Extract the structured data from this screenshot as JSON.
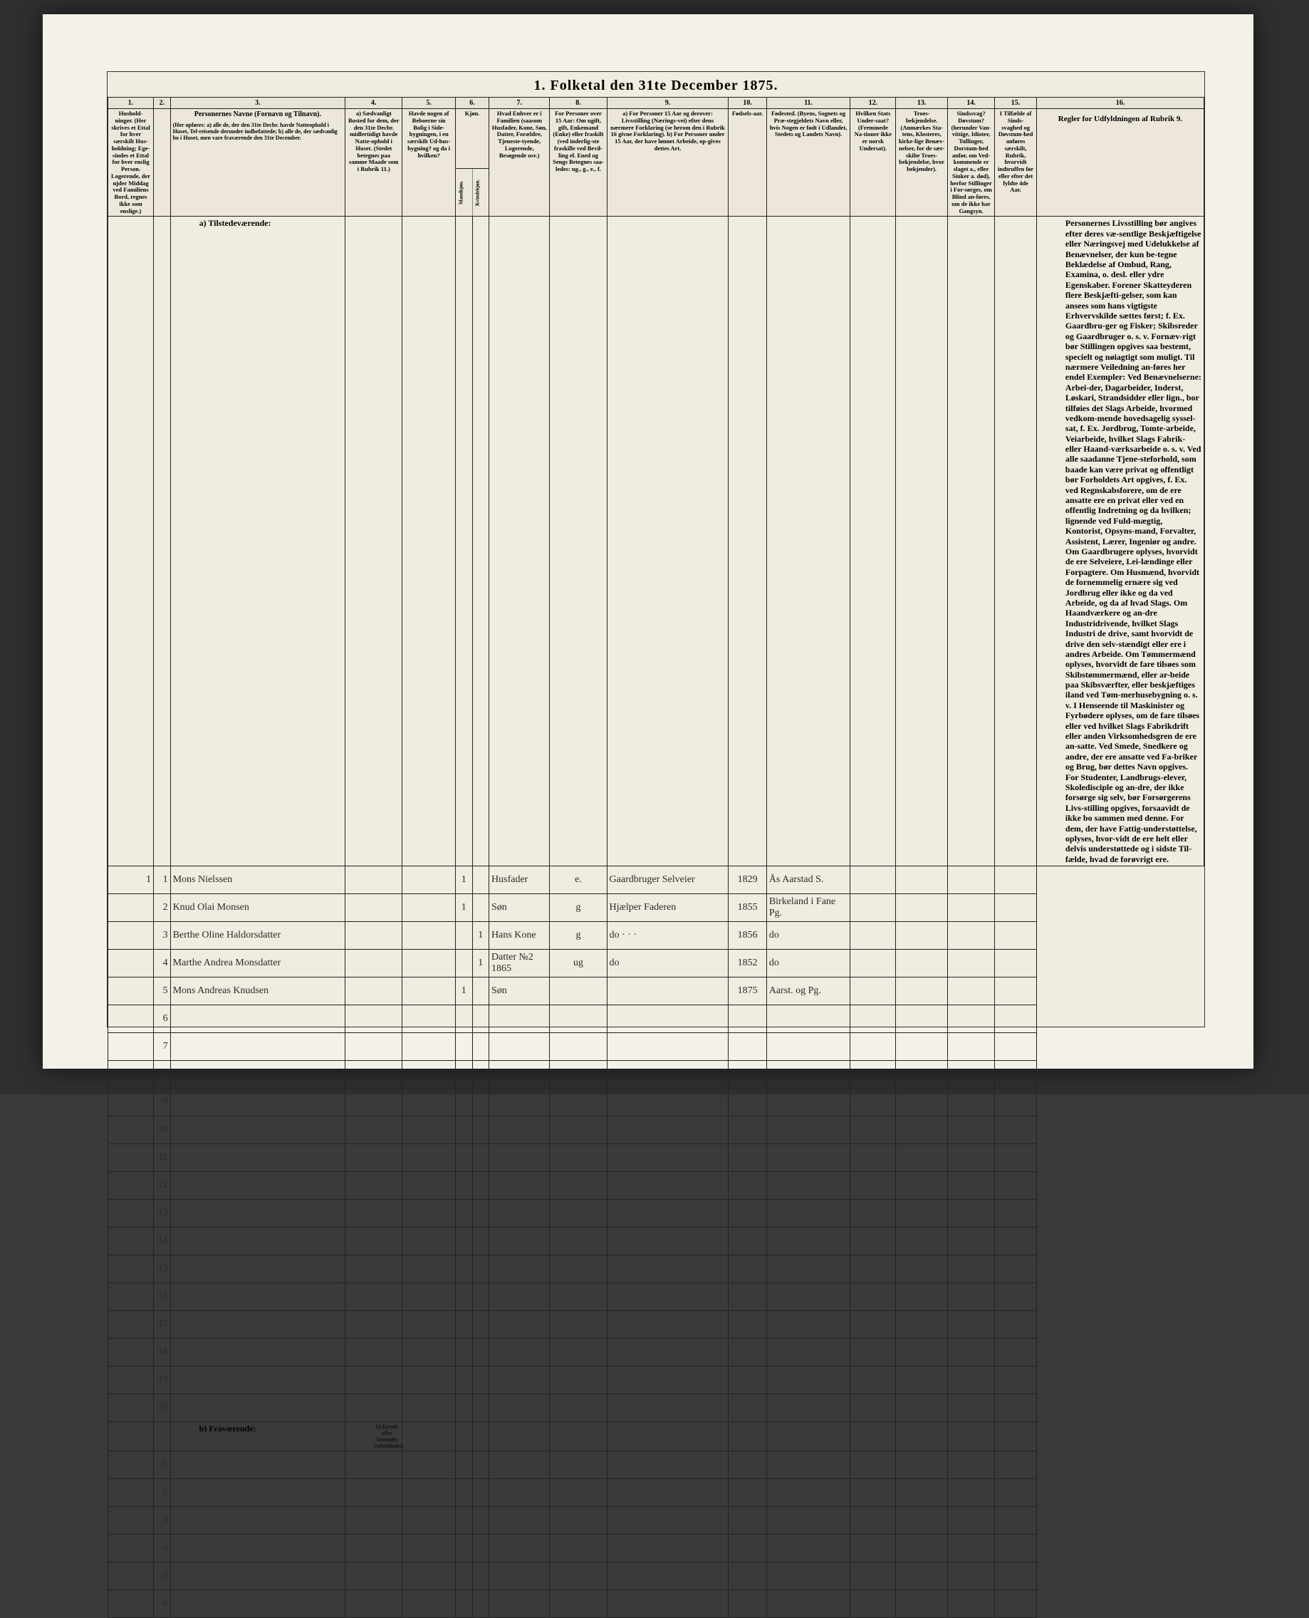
{
  "title": "1. Folketal den 31te December 1875.",
  "columns": {
    "c1": {
      "num": "1.",
      "header": "Hushold-\nninger.\n(Her skrives et Ettal for hver særskilt Hus-holdning; Ege-sindes et Ettal for hver enslig Person.\nLogerende, der njder Middag ved Familiens Bord, regnes ikke som enslige.)"
    },
    "c2": {
      "num": "2.",
      "header": ""
    },
    "c3": {
      "num": "3.",
      "header_top": "Personernes Navne (Fornavn og Tilnavn).",
      "header_sub": "(Her opføres:\na) alle de, der den 31te Decbr. havde Natteophold i Huset, Tel-reisende derunder indbefattede;\nb) alle de, der sædvanlig bo i Huset, men vare fraværende den 31te December."
    },
    "c4": {
      "num": "4.",
      "header": "a) Sædvanligt Bosted for dem, der den 31te Decbr. midlertidigt havde Natte-ophold i Huset. (Stedet betegnes paa samme Maade som i Rubrik 11.)"
    },
    "c5": {
      "num": "5.",
      "header": "Havde nogen af Beboerne sin Bolig i Side-bygningen, i en særskilt Ud-hus-bygning? og da i hvilken?"
    },
    "c6": {
      "num": "6.",
      "header_top": "Kjøn.",
      "header_sub1": "Mandkjøn.",
      "header_sub2": "Kvindekjøn."
    },
    "c7": {
      "num": "7.",
      "header": "Hvad Enhver er i Familien\n(saasom Husfader, Kone, Søn, Datter, Forældre, Tjeneste-tyende, Logerende, Besøgende osv.)"
    },
    "c8": {
      "num": "8.",
      "header": "For Personer over 15 Aar: Om ugift, gift, Enkemand (Enke) eller fraskilt (ved inderlig-ste fraskille ved Bevil-ling el. Ened og Sengs Betegnes saa-ledes:\nug., g., e., f."
    },
    "c9": {
      "num": "9.",
      "header": "a) For Personer 15 Aar og derover: Livsstilling (Nærings-vei) efter dens nærmere Forklaring\n(se herom den i Rubrik 16 givne Forklaring).\nb) For Personer under 15 Aar, der have lønnet Arbeide, op-gives dettes Art."
    },
    "c10": {
      "num": "10.",
      "header": "Fødsels-aar."
    },
    "c11": {
      "num": "11.",
      "header": "Fødested.\n(Byens, Sognets og Præ-stegjeldets Navn eller, hvis Nogen er født i Udlandet, Stedets og Landets Navn)."
    },
    "c12": {
      "num": "12.",
      "header": "Hvilken Stats Under-saat?\n(Fremmede Na-tioner ikke er norsk Undersat)."
    },
    "c13": {
      "num": "13.",
      "header": "Troes-bekjendelse.\n(Anmærkes Sta-tens, Klosteres, kirke-lige Benæv-nelser, for de sær-skilte Troes-bekjendelse, hvor bekjender)."
    },
    "c14": {
      "num": "14.",
      "header": "Sindssvag? Døvstum? (herunder Van-vittige, Idioter, Tullinger, Dorstum-hed anfør, om Ved-kommende er slaget a., eller Sinker a. død), herfor Stillinger i For-sørges, om Blind an-føres, om de ikke har Gangsyn."
    },
    "c15": {
      "num": "15.",
      "header": "I Tilfælde af Sinds-svaghed og Døvstum-hed anføres særskilt, Rubrik, hvorvidt indtruffen før eller efter det fyldte 4de Aar."
    },
    "c16": {
      "num": "16.",
      "header_title": "Regler for Udfyldningen\naf\nRubrik 9."
    }
  },
  "sections": {
    "present": "a) Tilstedeværende:",
    "absent": "b) Fraværende:",
    "absent_col4": "b) Kjendt eller formodet Opholdssted."
  },
  "rows": [
    {
      "n": "1",
      "name": "Mons Nielssen",
      "c6a": "1",
      "c6b": "",
      "c7": "Husfader",
      "c8": "e.",
      "c9": "Gaardbruger Selveier",
      "c10": "1829",
      "c11": "Ås Aarstad S."
    },
    {
      "n": "2",
      "name": "Knud Olai Monsen",
      "c6a": "1",
      "c6b": "",
      "c7": "Søn",
      "c8": "g",
      "c9": "Hjælper Faderen",
      "c10": "1855",
      "c11": "Birkeland i Fane Pg."
    },
    {
      "n": "3",
      "name": "Berthe Oline Haldorsdatter",
      "c6a": "",
      "c6b": "1",
      "c7": "Hans Kone",
      "c8": "g",
      "c9": "do · · ·",
      "c10": "1856",
      "c11": "do"
    },
    {
      "n": "4",
      "name": "Marthe Andrea Monsdatter",
      "c6a": "",
      "c6b": "1",
      "c7": "Datter №2 1865",
      "c8": "ug",
      "c9": "do",
      "c10": "1852",
      "c11": "do"
    },
    {
      "n": "5",
      "name": "Mons Andreas Knudsen",
      "c6a": "1",
      "c6b": "",
      "c7": "Søn",
      "c8": "",
      "c9": "",
      "c10": "1875",
      "c11": "Aarst. og Pg."
    },
    {
      "n": "6"
    },
    {
      "n": "7"
    },
    {
      "n": "8"
    },
    {
      "n": "9"
    },
    {
      "n": "10"
    },
    {
      "n": "11"
    },
    {
      "n": "12"
    },
    {
      "n": "13"
    },
    {
      "n": "14"
    },
    {
      "n": "15"
    },
    {
      "n": "16"
    },
    {
      "n": "17"
    },
    {
      "n": "18"
    },
    {
      "n": "19"
    },
    {
      "n": "20"
    }
  ],
  "absent_rows": [
    {
      "n": "1"
    },
    {
      "n": "2"
    },
    {
      "n": "3"
    },
    {
      "n": "4"
    },
    {
      "n": "5"
    },
    {
      "n": "6"
    }
  ],
  "rules_text": "Personernes Livsstilling bør angives efter deres væ-sentlige Beskjæftigelse eller Næringsvej med Udelukkelse af Benævnelser, der kun be-tegne Beklædelse af Ombud, Rang, Examina, o. desl. eller ydre Egenskaber. Forener Skatteyderen flere Beskjæfti-gelser, som kan ansees som hans vigtigste Erhvervskilde sættes først; f. Ex. Gaardbru-ger og Fisker; Skibsreder og Gaardbruger o. s. v. Fornæv-rigt bør Stillingen opgives saa bestemt, specielt og nøiagtigt som muligt.\n\nTil nærmere Veiledning an-føres her endel Exempler:\n\nVed Benævnelserne: Arbei-der, Dagarbeider, Inderst, Løskari, Strandsidder eller lign., bor tilføies det Slags Arbeide, hvormed vedkom-mende hovedsagelig syssel-sat, f. Ex. Jordbrug, Tomte-arbeide, Veiarbeide, hvilket Slags Fabrik- eller Haand-værksarbeide o. s. v.\n\nVed alle saadanne Tjene-steforhold, som baade kan være privat og offentligt bør Forholdets Art opgives, f. Ex. ved Regnskabsforere, om de ere ansatte ere en privat eller ved en offentlig Indretning og da hvilken; lignende ved Fuld-mægtig, Kontorist, Opsyns-mand, Forvalter, Assistent, Lærer, Ingeniør og andre.\n\nOm Gaardbrugere oplyses, hvorvidt de ere Selveiere, Lei-lændinge eller Forpagtere.\n\nOm Husmænd, hvorvidt de fornemmelig ernære sig ved Jordbrug eller ikke og da ved Arbeide, og da af hvad Slags.\n\nOm Haandværkere og an-dre Industridrivende, hvilket Slags Industri de drive, samt hvorvidt de drive den selv-stændigt eller ere i andres Arbeide.\n\nOm Tømmermænd oplyses, hvorvidt de fare tilsøes som Skibstømmermænd, eller ar-beide paa Skibsværfter, eller beskjæftiges iland ved Tøm-merhusebygning o. s. v.\n\nI Henseende til Maskinister og Fyrbødere oplyses, om de fare tilsøes eller ved hvilket Slags Fabrikdrift eller anden Virksomhedsgren de ere an-satte.\n\nVed Smede, Snedkere og andre, der ere ansatte ved Fa-briker og Brug, bør dettes Navn opgives.\n\nFor Studenter, Landbrugs-elever, Skoledisciple og an-dre, der ikke forsørge sig selv, bør Forsørgerens Livs-stilling opgives, forsaavidt de ikke bo sammen med denne.\n\nFor dem, der have Fattig-understøttelse, oplyses, hvor-vidt de ere helt eller delvis understøttede og i sidste Til-fælde, hvad de forøvrigt ere."
}
